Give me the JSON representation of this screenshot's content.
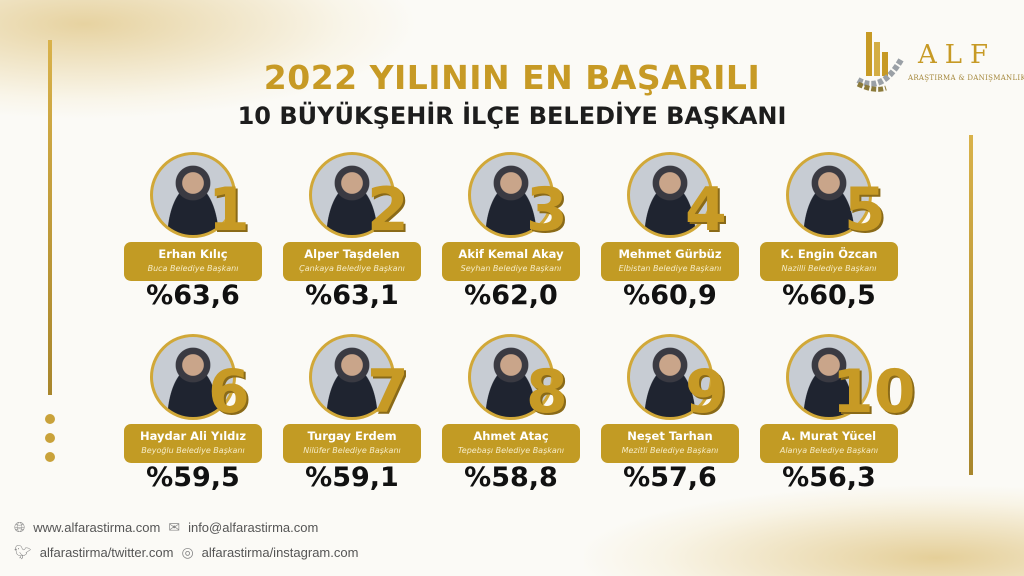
{
  "title": {
    "line1": "2022 YILININ EN BAŞARILI",
    "line2": "10 BÜYÜKŞEHİR İLÇE BELEDİYE BAŞKANI"
  },
  "logo": {
    "name": "ALF",
    "subtitle": "ARAŞTIRMA & DANIŞMANLIK"
  },
  "colors": {
    "gold": "#c29b24",
    "title_gold": "#c79a25",
    "text": "#111111"
  },
  "ranking": [
    {
      "rank": "1",
      "name": "Erhan Kılıç",
      "role": "Buca Belediye Başkanı",
      "percent": "%63,6"
    },
    {
      "rank": "2",
      "name": "Alper Taşdelen",
      "role": "Çankaya Belediye Başkanı",
      "percent": "%63,1"
    },
    {
      "rank": "3",
      "name": "Akif Kemal Akay",
      "role": "Seyhan Belediye Başkanı",
      "percent": "%62,0"
    },
    {
      "rank": "4",
      "name": "Mehmet Gürbüz",
      "role": "Elbistan Belediye Başkanı",
      "percent": "%60,9"
    },
    {
      "rank": "5",
      "name": "K. Engin Özcan",
      "role": "Nazilli Belediye Başkanı",
      "percent": "%60,5"
    },
    {
      "rank": "6",
      "name": "Haydar Ali Yıldız",
      "role": "Beyoğlu Belediye Başkanı",
      "percent": "%59,5"
    },
    {
      "rank": "7",
      "name": "Turgay Erdem",
      "role": "Nilüfer Belediye Başkanı",
      "percent": "%59,1"
    },
    {
      "rank": "8",
      "name": "Ahmet Ataç",
      "role": "Tepebaşı Belediye Başkanı",
      "percent": "%58,8"
    },
    {
      "rank": "9",
      "name": "Neşet Tarhan",
      "role": "Mezitli Belediye Başkanı",
      "percent": "%57,6"
    },
    {
      "rank": "10",
      "name": "A. Murat Yücel",
      "role": "Alanya Belediye Başkanı",
      "percent": "%56,3"
    }
  ],
  "footer": {
    "website": "www.alfarastirma.com",
    "email": "info@alfarastirma.com",
    "twitter": "alfarastirma/twitter.com",
    "instagram": "alfarastirma/instagram.com"
  }
}
